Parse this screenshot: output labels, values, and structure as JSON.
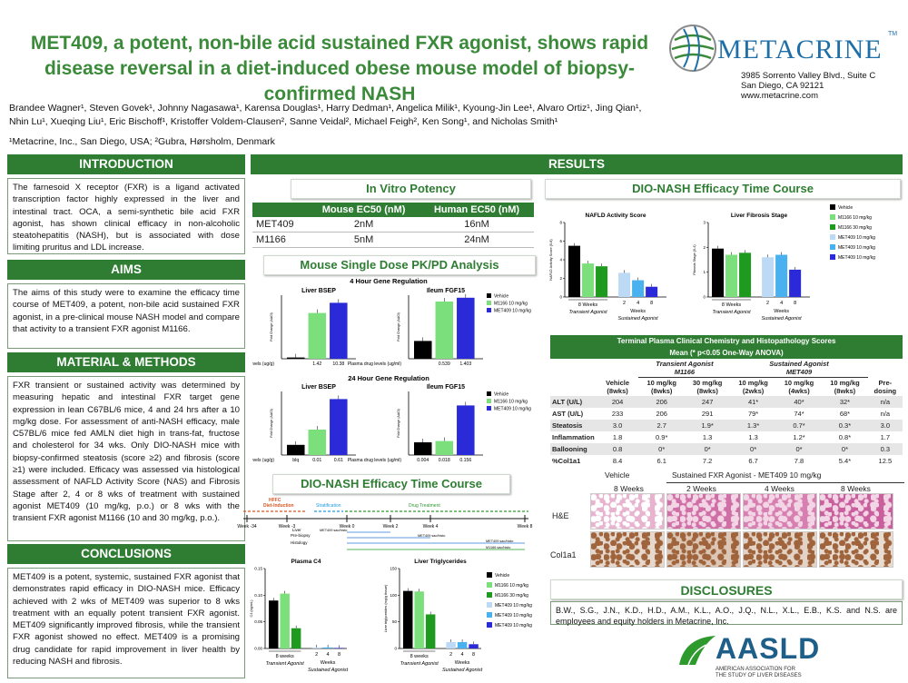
{
  "title": "MET409, a potent, non-bile acid sustained FXR agonist, shows rapid disease reversal in a diet-induced obese mouse model of biopsy-confirmed NASH",
  "logo": {
    "text": "METACRINE",
    "tm": "TM"
  },
  "address": [
    "3985 Sorrento Valley Blvd., Suite C",
    "San Diego, CA 92121",
    "www.metacrine.com"
  ],
  "authors": "Brandee Wagner¹, Steven Govek¹, Johnny Nagasawa¹, Karensa Douglas¹, Harry Dedman¹, Angelica Milik¹, Kyoung-Jin Lee¹, Alvaro Ortiz¹, Jing Qian¹, Nhin Lu¹, Xueqing Liu¹, Eric Bischoff¹, Kristoffer Voldem-Clausen², Sanne Veidal², Michael Feigh², Ken Song¹, and Nicholas Smith¹",
  "affiliations": "¹Metacrine, Inc., San Diego, USA; ²Gubra, Hørsholm, Denmark",
  "intro": {
    "header": "INTRODUCTION",
    "text": "The farnesoid X receptor (FXR) is a ligand activated transcription factor highly expressed in the liver and intestinal tract. OCA, a semi-synthetic bile acid FXR agonist, has shown clinical efficacy in non-alcoholic steatohepatitis (NASH), but is associated with dose limiting pruritus and LDL increase."
  },
  "aims": {
    "header": "AIMS",
    "text": "The aims of this study were to examine the efficacy time course of MET409, a potent, non-bile acid sustained FXR agonist, in a pre-clinical mouse NASH model and compare that activity to a transient FXR agonist M1166."
  },
  "methods": {
    "header": "MATERIAL & METHODS",
    "text": "FXR transient or sustained activity was determined by measuring hepatic and intestinal FXR target gene expression in lean C67BL/6 mice, 4 and 24 hrs after a 10 mg/kg dose. For assessment of anti-NASH efficacy, male C57BL/6 mice fed AMLN diet high in trans-fat, fructose and cholesterol for 34 wks. Only DIO-NASH mice with biopsy-confirmed steatosis (score ≥2) and fibrosis (score ≥1) were included. Efficacy was assessed via histological assessment of NAFLD Activity Score (NAS) and Fibrosis Stage after 2, 4 or 8 wks of treatment with sustained agonist MET409 (10 mg/kg, p.o.) or 8 wks with the transient FXR agonist M1166 (10 and 30 mg/kg, p.o.)."
  },
  "conclusions": {
    "header": "CONCLUSIONS",
    "text": "MET409 is a potent, systemic, sustained FXR agonist that demonstrates rapid efficacy in DIO-NASH mice. Efficacy achieved with 2 wks of MET409 was superior to 8 wks treatment with an equally potent transient FXR agonist. MET409 significantly improved fibrosis, while the transient FXR agonist showed no effect. MET409 is a promising drug candidate for rapid improvement in liver health by reducing NASH and fibrosis."
  },
  "results_header": "RESULTS",
  "invitro": {
    "header": "In Vitro Potency",
    "columns": [
      "",
      "Mouse EC50 (nM)",
      "Human EC50 (nM)"
    ],
    "rows": [
      [
        "MET409",
        "2nM",
        "16nM"
      ],
      [
        "M1166",
        "5nM",
        "24nM"
      ]
    ]
  },
  "pkpd": {
    "header": "Mouse Single Dose PK/PD Analysis",
    "h4": "4 Hour Gene Regulation",
    "h24": "24 Hour Gene Regulation",
    "legend": [
      "Vehicle",
      "M1166 10 mg/kg",
      "MET409 10 mg/kg"
    ],
    "ylabel": "Fold Change (ΔΔCt)",
    "charts": [
      {
        "title": "Liver BSEP",
        "xlabel": "Liver drug levels (ug/g)",
        "ticks": [
          "",
          "1.42",
          "10.38"
        ],
        "values": [
          0.02,
          0.72,
          0.88
        ]
      },
      {
        "title": "Ileum FGF15",
        "xlabel": "Plasma drug levels (ug/ml)",
        "ticks": [
          "",
          "0.539",
          "1.403"
        ],
        "values": [
          0.28,
          0.9,
          0.96
        ]
      },
      {
        "title": "Liver BSEP",
        "xlabel": "Liver drug levels (ug/g)",
        "ticks": [
          "blq",
          "0.01",
          "0.61"
        ],
        "values": [
          0.16,
          0.4,
          0.88
        ],
        "extra": 0.16
      },
      {
        "title": "Ileum FGF15",
        "xlabel": "Plasma drug levels (ug/ml)",
        "ticks": [
          "0.004",
          "0.018",
          "0.156"
        ],
        "values": [
          0.2,
          0.22,
          0.78
        ],
        "extra": 0.18
      }
    ]
  },
  "timecourse": {
    "header": "DIO-NASH Efficacy Time Course",
    "phases": [
      "HFFC",
      "Diet-Induction",
      "Stratification",
      "Drug Treatment"
    ],
    "weeks": [
      "Week -34",
      "Week -3",
      "Week 0",
      "Week 2",
      "Week 4",
      "Week 8"
    ],
    "notes": [
      "Liver",
      "Pre-biopsy",
      "Histology"
    ],
    "arrows": [
      "MET409 sac/histo",
      "MET409 sac/histo",
      "MET409 sac/histo",
      "M1166 sac/histo"
    ],
    "c4": {
      "title": "Plasma C4",
      "ylabel": "C4 (ng/mL)",
      "values": [
        0.09,
        0.103,
        0.038,
        0.002,
        0.002,
        0.001
      ],
      "ticks": [
        "0.00",
        "0.05",
        "0.10",
        "0.15"
      ]
    },
    "tg": {
      "title": "Liver Triglycerides",
      "ylabel": "Liver triglycerides (mg/g tissue)",
      "values": [
        108,
        107,
        64,
        12,
        12,
        8
      ],
      "ticks": [
        "0",
        "50",
        "100",
        "150"
      ]
    },
    "legend": [
      "Vehicle",
      "M1166 10 mg/kg",
      "M1166 30 mg/kg",
      "MET409 10 mg/kg",
      "MET409 10 mg/kg",
      "MET409 10 mg/kg"
    ],
    "xgroup": [
      "8 weeks",
      "Weeks"
    ],
    "xtick": [
      "2",
      "4",
      "8"
    ],
    "agents": [
      "Transient Agonist",
      "Sustained Agonist"
    ]
  },
  "efficacy": {
    "header": "DIO-NASH Efficacy Time Course",
    "nas": {
      "title": "NAFLD Activity Score",
      "ylabel": "NAFLD Activity Score (0-8)",
      "ticks": [
        "0",
        "2",
        "4",
        "6",
        "8"
      ],
      "values": [
        5.5,
        3.6,
        3.3,
        2.6,
        1.8,
        1.1
      ]
    },
    "fib": {
      "title": "Liver Fibrosis Stage",
      "ylabel": "Fibrosis Stage (0-4)",
      "ticks": [
        "0",
        "1",
        "2",
        "3"
      ],
      "values": [
        1.95,
        1.7,
        1.78,
        1.6,
        1.7,
        1.1
      ]
    },
    "legend": [
      "Vehicle",
      "M1166 10 mg/kg",
      "M1166 30 mg/kg",
      "MET409 10 mg/kg",
      "MET409 10 mg/kg",
      "MET409 10 mg/kg"
    ],
    "xgroup": [
      "8 Weeks",
      "Weeks"
    ],
    "xtick": [
      "2",
      "4",
      "8"
    ],
    "agents": [
      "Transient Agonist",
      "Sustained Agonist"
    ]
  },
  "chem": {
    "title": "Terminal Plasma Clinical Chemistry and Histopathology Scores",
    "subtitle": "Mean (* p<0.05 One-Way ANOVA)",
    "groups": [
      "Transient Agonist",
      "M1166",
      "Sustained Agonist",
      "MET409"
    ],
    "columns": [
      "",
      "Vehicle (8wks)",
      "10 mg/kg (8wks)",
      "30 mg/kg (8wks)",
      "10 mg/kg (2wks)",
      "10 mg/kg (4wks)",
      "10 mg/kg (8wks)",
      "Pre-dosing"
    ],
    "rows": [
      [
        "ALT (U/L)",
        "204",
        "206",
        "247",
        "41*",
        "40*",
        "32*",
        "n/a"
      ],
      [
        "AST (U/L)",
        "233",
        "206",
        "291",
        "79*",
        "74*",
        "68*",
        "n/a"
      ],
      [
        "Steatosis",
        "3.0",
        "2.7",
        "1.9*",
        "1.3*",
        "0.7*",
        "0.3*",
        "3.0"
      ],
      [
        "Inflammation",
        "1.8",
        "0.9*",
        "1.3",
        "1.3",
        "1.2*",
        "0.8*",
        "1.7"
      ],
      [
        "Ballooning",
        "0.8",
        "0*",
        "0*",
        "0*",
        "0*",
        "0*",
        "0.3"
      ],
      [
        "%Col1a1",
        "8.4",
        "6.1",
        "7.2",
        "6.7",
        "7.8",
        "5.4*",
        "12.5"
      ]
    ]
  },
  "histo": {
    "vehicle": "Vehicle",
    "sustained": "Sustained FXR Agonist - MET409 10 mg/kg",
    "cols": [
      "8 Weeks",
      "2 Weeks",
      "4 Weeks",
      "8 Weeks"
    ],
    "rows": [
      "H&E",
      "Col1a1"
    ]
  },
  "disclosures": {
    "header": "DISCLOSURES",
    "text": "B.W., S.G., J.N., K.D., H.D., A.M., K.L., A.O., J.Q., N.L., X.L., E.B., K.S. and N.S. are employees and equity holders in Metacrine, Inc."
  },
  "aasld": {
    "name": "AASLD",
    "sub1": "AMERICAN ASSOCIATION FOR",
    "sub2": "THE STUDY OF LIVER DISEASES"
  },
  "colors": {
    "green": "#2e7d32",
    "vehicle": "#000000",
    "m1166_10": "#7be07b",
    "m1166_30": "#1e9a1e",
    "met409_light": "#bcd9f5",
    "met409_mid": "#4ab1f0",
    "met409_dark": "#2a2ad8"
  }
}
